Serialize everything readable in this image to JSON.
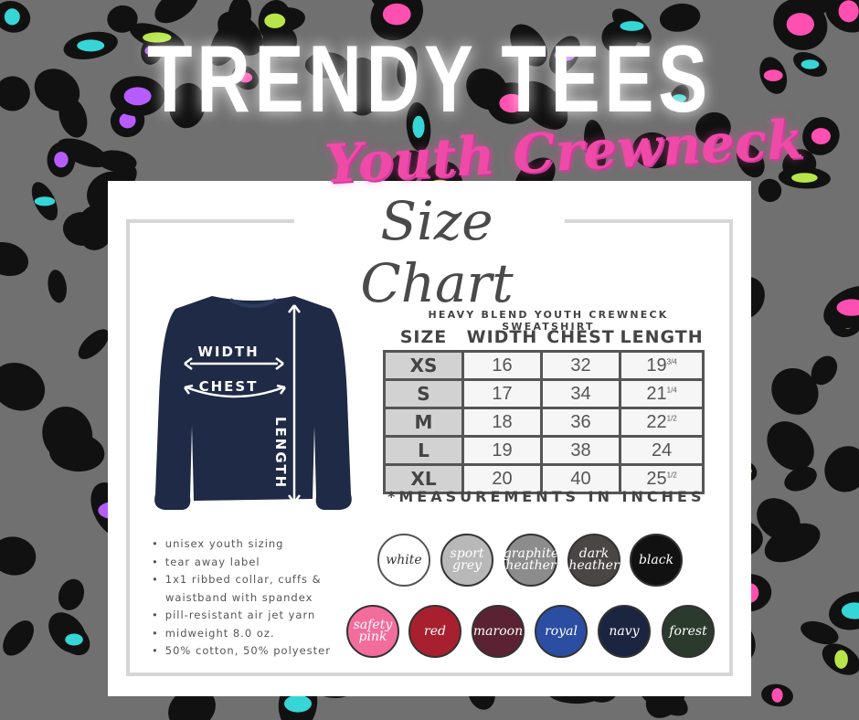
{
  "header": {
    "title": "TRENDY TEES",
    "subtitle": "Youth Crewneck"
  },
  "card": {
    "heading": "Size Chart",
    "product": "HEAVY BLEND YOUTH CREWNECK SWEATSHIRT",
    "diagram_labels": {
      "width": "WIDTH",
      "chest": "CHEST",
      "length": "LENGTH"
    },
    "table": {
      "columns": [
        "SIZE",
        "WIDTH",
        "CHEST",
        "LENGTH"
      ],
      "rows": [
        {
          "size": "XS",
          "width": "16",
          "chest": "32",
          "length": "19",
          "frac": "3/4"
        },
        {
          "size": "S",
          "width": "17",
          "chest": "34",
          "length": "21",
          "frac": "1/4"
        },
        {
          "size": "M",
          "width": "18",
          "chest": "36",
          "length": "22",
          "frac": "1/2"
        },
        {
          "size": "L",
          "width": "19",
          "chest": "38",
          "length": "24",
          "frac": ""
        },
        {
          "size": "XL",
          "width": "20",
          "chest": "40",
          "length": "25",
          "frac": "1/2"
        }
      ]
    },
    "note": "*MEASUREMENTS IN INCHES",
    "features": [
      "unisex youth sizing",
      "tear away label",
      "1x1 ribbed collar, cuffs &",
      "waistband with spandex",
      "pill-resistant air jet yarn",
      "midweight 8.0 oz.",
      "50% cotton, 50% polyester"
    ],
    "colors": [
      {
        "name": "white",
        "hex": "#ffffff",
        "text": "#333333"
      },
      {
        "name": "sport grey",
        "hex": "#b8b8b8",
        "text": "#ffffff"
      },
      {
        "name": "graphite heather",
        "hex": "#8c8c8c",
        "text": "#ffffff"
      },
      {
        "name": "dark heather",
        "hex": "#4b4646",
        "text": "#ffffff"
      },
      {
        "name": "black",
        "hex": "#111111",
        "text": "#ffffff"
      },
      {
        "name": "safety pink",
        "hex": "#f26c9c",
        "text": "#ffffff"
      },
      {
        "name": "red",
        "hex": "#a8202f",
        "text": "#ffffff"
      },
      {
        "name": "maroon",
        "hex": "#5a2232",
        "text": "#ffffff"
      },
      {
        "name": "royal",
        "hex": "#2b4ea2",
        "text": "#ffffff"
      },
      {
        "name": "navy",
        "hex": "#1c2540",
        "text": "#ffffff"
      },
      {
        "name": "forest",
        "hex": "#2c3a2d",
        "text": "#ffffff"
      }
    ],
    "shirt_color": "#1e2a46"
  }
}
